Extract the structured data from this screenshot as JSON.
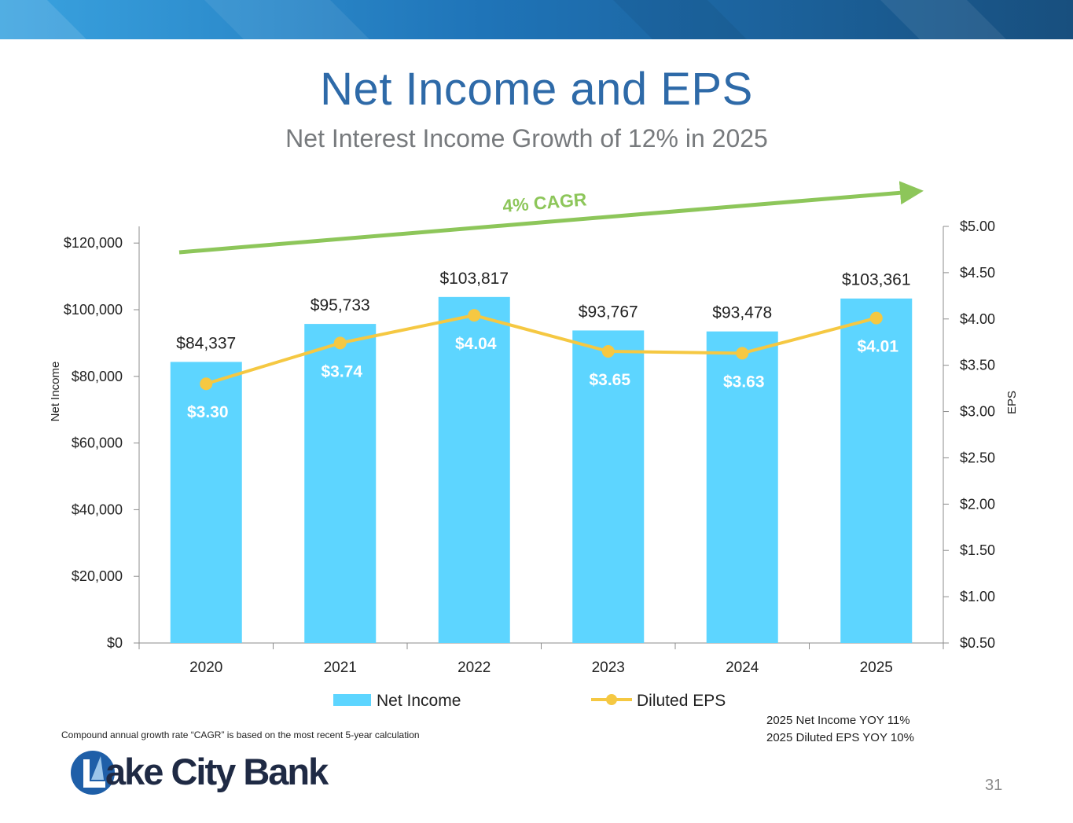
{
  "slide": {
    "title": "Net Income and EPS",
    "subtitle": "Net Interest Income Growth of 12% in 2025",
    "cagr_label": "4% CAGR",
    "footnote": "Compound annual growth rate “CAGR” is based on the most recent 5-year calculation",
    "yoy_lines": [
      "2025 Net Income YOY  11%",
      "2025 Diluted EPS YOY  10%"
    ],
    "logo_text": "ake City Bank",
    "page_number": "31"
  },
  "colors": {
    "title": "#2e6aa8",
    "bar": "#5dd5ff",
    "line": "#f5c842",
    "cagr": "#8dc65a",
    "band_dark": "#1b5b8e",
    "band_light": "#2f8ed0"
  },
  "chart_data": {
    "type": "bar",
    "categories": [
      "2020",
      "2021",
      "2022",
      "2023",
      "2024",
      "2025"
    ],
    "series": [
      {
        "name": "Net Income",
        "type": "bar",
        "axis": "left",
        "values": [
          84337,
          95733,
          103817,
          93767,
          93478,
          103361
        ],
        "labels": [
          "$84,337",
          "$95,733",
          "$103,817",
          "$93,767",
          "$93,478",
          "$103,361"
        ]
      },
      {
        "name": "Diluted EPS",
        "type": "line",
        "axis": "right",
        "values": [
          3.3,
          3.74,
          4.04,
          3.65,
          3.63,
          4.01
        ],
        "labels": [
          "$3.30",
          "$3.74",
          "$4.04",
          "$3.65",
          "$3.63",
          "$4.01"
        ]
      }
    ],
    "ylabel": "Net Income",
    "ylim": [
      0,
      125000
    ],
    "yticks": [
      0,
      20000,
      40000,
      60000,
      80000,
      100000,
      120000
    ],
    "ytick_labels": [
      "$0",
      "$20,000",
      "$40,000",
      "$60,000",
      "$80,000",
      "$100,000",
      "$120,000"
    ],
    "y2label": "EPS",
    "y2lim": [
      0.5,
      5.0
    ],
    "y2ticks": [
      0.5,
      1.0,
      1.5,
      2.0,
      2.5,
      3.0,
      3.5,
      4.0,
      4.5,
      5.0
    ],
    "y2tick_labels": [
      "$0.50",
      "$1.00",
      "$1.50",
      "$2.00",
      "$2.50",
      "$3.00",
      "$3.50",
      "$4.00",
      "$4.50",
      "$5.00"
    ],
    "legend": [
      "Net Income",
      "Diluted EPS"
    ],
    "legend_position": "bottom"
  }
}
